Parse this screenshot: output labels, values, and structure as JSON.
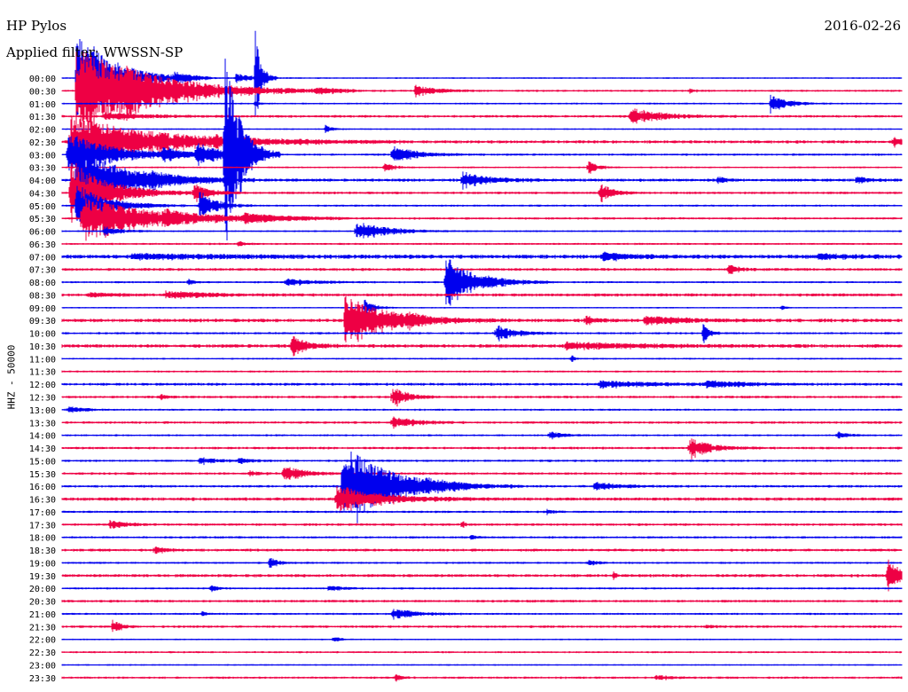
{
  "station": "HP Pylos",
  "filter_label": "Applied filter: WWSSN-SP",
  "date": "2016-02-26",
  "channel": "HHZ - 50000",
  "colors": {
    "trace_a": "#0000ee",
    "trace_b": "#ee0044",
    "text": "#000000",
    "background": "#ffffff"
  },
  "chart_data": {
    "type": "helicorder",
    "station": "HP Pylos",
    "date": "2016-02-26",
    "filter": "WWSSN-SP",
    "channel": "HHZ - 50000",
    "row_interval_minutes": 30,
    "row_labels": [
      "00:00",
      "00:30",
      "01:00",
      "01:30",
      "02:00",
      "02:30",
      "03:00",
      "03:30",
      "04:00",
      "04:30",
      "05:00",
      "05:30",
      "06:00",
      "06:30",
      "07:00",
      "07:30",
      "08:00",
      "08:30",
      "09:00",
      "09:30",
      "10:00",
      "10:30",
      "11:00",
      "11:30",
      "12:00",
      "12:30",
      "13:00",
      "13:30",
      "14:00",
      "14:30",
      "15:00",
      "15:30",
      "16:00",
      "16:30",
      "17:00",
      "17:30",
      "18:00",
      "18:30",
      "19:00",
      "19:30",
      "20:00",
      "20:30",
      "21:00",
      "21:30",
      "22:00",
      "22:30",
      "23:00",
      "23:30"
    ],
    "row_colors": [
      "blue",
      "red"
    ],
    "noise_level": [
      0.6,
      0.8,
      0.7,
      1.0,
      0.6,
      1.2,
      0.9,
      0.7,
      1.2,
      1.0,
      0.8,
      0.9,
      0.7,
      0.8,
      1.6,
      1.1,
      0.8,
      1.2,
      0.6,
      1.4,
      0.9,
      1.4,
      0.7,
      0.8,
      1.1,
      1.0,
      0.8,
      1.0,
      0.8,
      1.0,
      0.9,
      1.0,
      1.0,
      1.3,
      0.9,
      1.0,
      0.9,
      1.1,
      0.8,
      1.2,
      0.8,
      1.0,
      0.8,
      1.0,
      0.6,
      0.8,
      0.6,
      0.9
    ],
    "events": [
      {
        "row": 0,
        "minute": 0.5,
        "amp": 60,
        "dur": 1.2
      },
      {
        "row": 0,
        "minute": 4.0,
        "amp": 6,
        "dur": 0.5
      },
      {
        "row": 0,
        "minute": 6.2,
        "amp": 5,
        "dur": 0.6
      },
      {
        "row": 0,
        "minute": 6.9,
        "amp": 55,
        "dur": 0.2
      },
      {
        "row": 1,
        "minute": 0.5,
        "amp": 50,
        "dur": 2.5
      },
      {
        "row": 1,
        "minute": 2.3,
        "amp": 5,
        "dur": 1.2
      },
      {
        "row": 1,
        "minute": 12.6,
        "amp": 6,
        "dur": 0.8
      },
      {
        "row": 1,
        "minute": 9.1,
        "amp": 3,
        "dur": 0.6
      },
      {
        "row": 1,
        "minute": 22.4,
        "amp": 3,
        "dur": 0.2
      },
      {
        "row": 2,
        "minute": 6.9,
        "amp": 4,
        "dur": 0.1
      },
      {
        "row": 2,
        "minute": 25.3,
        "amp": 10,
        "dur": 0.6
      },
      {
        "row": 3,
        "minute": 1.5,
        "amp": 4,
        "dur": 1.5
      },
      {
        "row": 3,
        "minute": 20.3,
        "amp": 10,
        "dur": 1.0
      },
      {
        "row": 4,
        "minute": 9.4,
        "amp": 6,
        "dur": 0.2
      },
      {
        "row": 5,
        "minute": 0.3,
        "amp": 30,
        "dur": 3.0
      },
      {
        "row": 5,
        "minute": 5.5,
        "amp": 4,
        "dur": 0.3
      },
      {
        "row": 5,
        "minute": 29.7,
        "amp": 5,
        "dur": 0.4
      },
      {
        "row": 6,
        "minute": 0.2,
        "amp": 25,
        "dur": 1.5
      },
      {
        "row": 6,
        "minute": 3.6,
        "amp": 8,
        "dur": 0.6
      },
      {
        "row": 6,
        "minute": 4.8,
        "amp": 14,
        "dur": 0.7
      },
      {
        "row": 6,
        "minute": 5.8,
        "amp": 120,
        "dur": 0.5
      },
      {
        "row": 6,
        "minute": 11.8,
        "amp": 10,
        "dur": 0.8
      },
      {
        "row": 7,
        "minute": 11.5,
        "amp": 6,
        "dur": 0.3
      },
      {
        "row": 7,
        "minute": 18.8,
        "amp": 8,
        "dur": 0.3
      },
      {
        "row": 8,
        "minute": 0.5,
        "amp": 40,
        "dur": 1.6
      },
      {
        "row": 8,
        "minute": 3.2,
        "amp": 4,
        "dur": 0.7
      },
      {
        "row": 8,
        "minute": 14.3,
        "amp": 9,
        "dur": 0.9
      },
      {
        "row": 8,
        "minute": 23.4,
        "amp": 4,
        "dur": 0.3
      },
      {
        "row": 8,
        "minute": 28.4,
        "amp": 5,
        "dur": 0.3
      },
      {
        "row": 9,
        "minute": 0.3,
        "amp": 40,
        "dur": 1.2
      },
      {
        "row": 9,
        "minute": 4.7,
        "amp": 12,
        "dur": 0.5
      },
      {
        "row": 9,
        "minute": 19.2,
        "amp": 12,
        "dur": 0.4
      },
      {
        "row": 10,
        "minute": 0.5,
        "amp": 25,
        "dur": 1.0
      },
      {
        "row": 10,
        "minute": 4.9,
        "amp": 20,
        "dur": 0.5
      },
      {
        "row": 11,
        "minute": 0.7,
        "amp": 25,
        "dur": 2.4
      },
      {
        "row": 11,
        "minute": 3.6,
        "amp": 5,
        "dur": 0.8
      },
      {
        "row": 11,
        "minute": 6.5,
        "amp": 5,
        "dur": 1.2
      },
      {
        "row": 12,
        "minute": 10.5,
        "amp": 12,
        "dur": 1.0
      },
      {
        "row": 12,
        "minute": 1.5,
        "amp": 5,
        "dur": 0.6
      },
      {
        "row": 13,
        "minute": 6.3,
        "amp": 4,
        "dur": 0.2
      },
      {
        "row": 14,
        "minute": 2.5,
        "amp": 3,
        "dur": 3.0
      },
      {
        "row": 14,
        "minute": 19.3,
        "amp": 5,
        "dur": 0.9
      },
      {
        "row": 14,
        "minute": 27.0,
        "amp": 3,
        "dur": 1.0
      },
      {
        "row": 15,
        "minute": 23.8,
        "amp": 6,
        "dur": 0.3
      },
      {
        "row": 16,
        "minute": 13.7,
        "amp": 30,
        "dur": 1.0
      },
      {
        "row": 16,
        "minute": 8.0,
        "amp": 4,
        "dur": 1.0
      },
      {
        "row": 16,
        "minute": 4.5,
        "amp": 4,
        "dur": 0.2
      },
      {
        "row": 17,
        "minute": 3.7,
        "amp": 4,
        "dur": 1.5
      },
      {
        "row": 17,
        "minute": 1.0,
        "amp": 3,
        "dur": 0.6
      },
      {
        "row": 18,
        "minute": 10.8,
        "amp": 10,
        "dur": 0.3
      },
      {
        "row": 18,
        "minute": 25.7,
        "amp": 4,
        "dur": 0.1
      },
      {
        "row": 19,
        "minute": 10.1,
        "amp": 28,
        "dur": 1.5
      },
      {
        "row": 19,
        "minute": 12.4,
        "amp": 6,
        "dur": 0.3
      },
      {
        "row": 19,
        "minute": 18.7,
        "amp": 6,
        "dur": 0.3
      },
      {
        "row": 19,
        "minute": 20.8,
        "amp": 5,
        "dur": 1.3
      },
      {
        "row": 20,
        "minute": 15.5,
        "amp": 10,
        "dur": 0.6
      },
      {
        "row": 20,
        "minute": 22.9,
        "amp": 10,
        "dur": 0.2
      },
      {
        "row": 21,
        "minute": 8.2,
        "amp": 12,
        "dur": 0.5
      },
      {
        "row": 21,
        "minute": 18.0,
        "amp": 4,
        "dur": 2.5
      },
      {
        "row": 22,
        "minute": 18.2,
        "amp": 5,
        "dur": 0.1
      },
      {
        "row": 24,
        "minute": 19.2,
        "amp": 4,
        "dur": 1.8
      },
      {
        "row": 24,
        "minute": 23.0,
        "amp": 4,
        "dur": 1.2
      },
      {
        "row": 25,
        "minute": 11.8,
        "amp": 12,
        "dur": 0.5
      },
      {
        "row": 25,
        "minute": 3.5,
        "amp": 3,
        "dur": 0.2
      },
      {
        "row": 26,
        "minute": 0.2,
        "amp": 4,
        "dur": 0.5
      },
      {
        "row": 27,
        "minute": 11.8,
        "amp": 8,
        "dur": 0.7
      },
      {
        "row": 28,
        "minute": 17.4,
        "amp": 4,
        "dur": 0.5
      },
      {
        "row": 28,
        "minute": 27.7,
        "amp": 5,
        "dur": 0.3
      },
      {
        "row": 29,
        "minute": 22.4,
        "amp": 12,
        "dur": 0.7
      },
      {
        "row": 30,
        "minute": 4.9,
        "amp": 4,
        "dur": 0.6
      },
      {
        "row": 30,
        "minute": 6.3,
        "amp": 3,
        "dur": 0.4
      },
      {
        "row": 31,
        "minute": 7.9,
        "amp": 10,
        "dur": 0.6
      },
      {
        "row": 31,
        "minute": 6.7,
        "amp": 3,
        "dur": 0.3
      },
      {
        "row": 32,
        "minute": 10.0,
        "amp": 50,
        "dur": 1.6
      },
      {
        "row": 32,
        "minute": 13.0,
        "amp": 4,
        "dur": 0.5
      },
      {
        "row": 32,
        "minute": 19.0,
        "amp": 5,
        "dur": 0.8
      },
      {
        "row": 33,
        "minute": 9.8,
        "amp": 15,
        "dur": 1.5
      },
      {
        "row": 34,
        "minute": 17.3,
        "amp": 3,
        "dur": 0.2
      },
      {
        "row": 35,
        "minute": 1.7,
        "amp": 5,
        "dur": 0.5
      },
      {
        "row": 35,
        "minute": 14.3,
        "amp": 4,
        "dur": 0.1
      },
      {
        "row": 36,
        "minute": 14.6,
        "amp": 3,
        "dur": 0.2
      },
      {
        "row": 37,
        "minute": 3.3,
        "amp": 4,
        "dur": 0.4
      },
      {
        "row": 38,
        "minute": 7.4,
        "amp": 6,
        "dur": 0.3
      },
      {
        "row": 38,
        "minute": 18.8,
        "amp": 3,
        "dur": 0.3
      },
      {
        "row": 39,
        "minute": 29.5,
        "amp": 28,
        "dur": 0.3
      },
      {
        "row": 39,
        "minute": 19.7,
        "amp": 4,
        "dur": 0.1
      },
      {
        "row": 40,
        "minute": 5.3,
        "amp": 5,
        "dur": 0.2
      },
      {
        "row": 40,
        "minute": 9.5,
        "amp": 3,
        "dur": 0.5
      },
      {
        "row": 42,
        "minute": 11.8,
        "amp": 6,
        "dur": 0.8
      },
      {
        "row": 42,
        "minute": 5.0,
        "amp": 3,
        "dur": 0.2
      },
      {
        "row": 43,
        "minute": 1.8,
        "amp": 8,
        "dur": 0.3
      },
      {
        "row": 43,
        "minute": 23.0,
        "amp": 3,
        "dur": 0.2
      },
      {
        "row": 44,
        "minute": 9.7,
        "amp": 4,
        "dur": 0.2
      },
      {
        "row": 47,
        "minute": 11.9,
        "amp": 4,
        "dur": 0.2
      },
      {
        "row": 47,
        "minute": 21.2,
        "amp": 3,
        "dur": 0.4
      }
    ]
  }
}
